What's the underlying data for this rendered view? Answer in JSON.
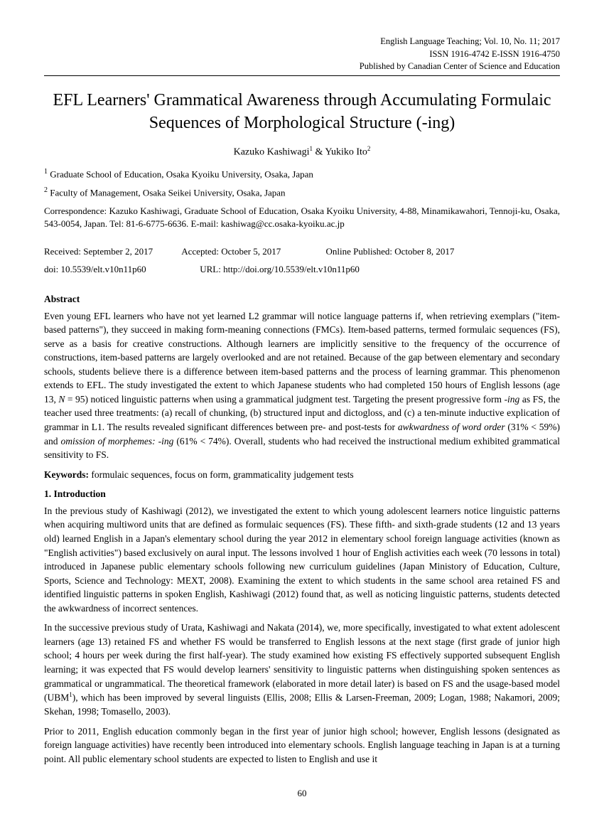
{
  "header": {
    "line1": "English Language Teaching; Vol. 10, No. 11; 2017",
    "line2": "ISSN 1916-4742    E-ISSN 1916-4750",
    "line3": "Published by Canadian Center of Science and Education"
  },
  "title": "EFL Learners' Grammatical Awareness through Accumulating Formulaic Sequences of Morphological Structure (-ing)",
  "authors_html": "Kazuko Kashiwagi<sup>1</sup> & Yukiko Ito<sup>2</sup>",
  "affiliations": [
    {
      "num": "1",
      "text": "Graduate School of Education, Osaka Kyoiku University, Osaka, Japan"
    },
    {
      "num": "2",
      "text": "Faculty of Management, Osaka Seikei University, Osaka, Japan"
    }
  ],
  "correspondence": "Correspondence: Kazuko Kashiwagi, Graduate School of Education, Osaka Kyoiku University, 4-88, Minamikawahori, Tennoji-ku, Osaka, 543-0054, Japan. Tel: 81-6-6775-6636. E-mail: kashiwag@cc.osaka-kyoiku.ac.jp",
  "dates": {
    "received": "Received: September 2, 2017",
    "accepted": "Accepted: October 5, 2017",
    "published": "Online Published: October 8, 2017"
  },
  "doi": {
    "doi": "doi: 10.5539/elt.v10n11p60",
    "url": "URL: http://doi.org/10.5539/elt.v10n11p60"
  },
  "abstract_head": "Abstract",
  "abstract_body": "Even young EFL learners who have not yet learned L2 grammar will notice language patterns if, when retrieving exemplars (\"item-based patterns\"), they succeed in making form-meaning connections (FMCs). Item-based patterns, termed formulaic sequences (FS), serve as a basis for creative constructions. Although learners are implicitly sensitive to the frequency of the occurrence of constructions, item-based patterns are largely overlooked and are not retained. Because of the gap between elementary and secondary schools, students believe there is a difference between item-based patterns and the process of learning grammar. This phenomenon extends to EFL. The study investigated the extent to which Japanese students who had completed 150 hours of English lessons (age 13, N = 95) noticed linguistic patterns when using a grammatical judgment test. Targeting the present progressive form -ing as FS, the teacher used three treatments: (a) recall of chunking, (b) structured input and dictogloss, and (c) a ten-minute inductive explication of grammar in L1. The results revealed significant differences between pre- and post-tests for awkwardness of word order (31% < 59%) and omission of morphemes: -ing (61% < 74%). Overall, students who had received the instructional medium exhibited grammatical sensitivity to FS.",
  "keywords_label": "Keywords:",
  "keywords_text": " formulaic sequences, focus on form, grammaticality judgement tests",
  "intro_head": "1. Introduction",
  "intro_p1": "In the previous study of Kashiwagi (2012), we investigated the extent to which young adolescent learners notice linguistic patterns when acquiring multiword units that are defined as formulaic sequences (FS). These fifth- and sixth-grade students (12 and 13 years old) learned English in a Japan's elementary school during the year 2012 in elementary school foreign language activities (known as \"English activities\") based exclusively on aural input. The lessons involved 1 hour of English activities each week (70 lessons in total) introduced in Japanese public elementary schools following new curriculum guidelines (Japan Ministory of Education, Culture, Sports, Science and Technology: MEXT, 2008). Examining the extent to which students in the same school area retained FS and identified linguistic patterns in spoken English, Kashiwagi (2012) found that, as well as noticing linguistic patterns, students detected the awkwardness of incorrect sentences.",
  "intro_p2": "In the successive previous study of Urata, Kashiwagi and Nakata (2014), we, more specifically, investigated to what extent adolescent learners (age 13) retained FS and whether FS would be transferred to English lessons at the next stage (first grade of junior high school; 4 hours per week during the first half-year). The study examined how existing FS effectively supported subsequent English learning; it was expected that FS would develop learners' sensitivity to linguistic patterns when distinguishing spoken sentences as grammatical or ungrammatical. The theoretical framework (elaborated in more detail later) is based on FS and the usage-based model (UBM¹), which has been improved by several linguists (Ellis, 2008; Ellis & Larsen-Freeman, 2009; Logan, 1988; Nakamori, 2009; Skehan, 1998; Tomasello, 2003).",
  "intro_p3": "Prior to 2011, English education commonly began in the first year of junior high school; however, English lessons (designated as foreign language activities) have recently been introduced into elementary schools. English language teaching in Japan is at a turning point. All public elementary school students are expected to listen to English and use it",
  "page_number": "60"
}
